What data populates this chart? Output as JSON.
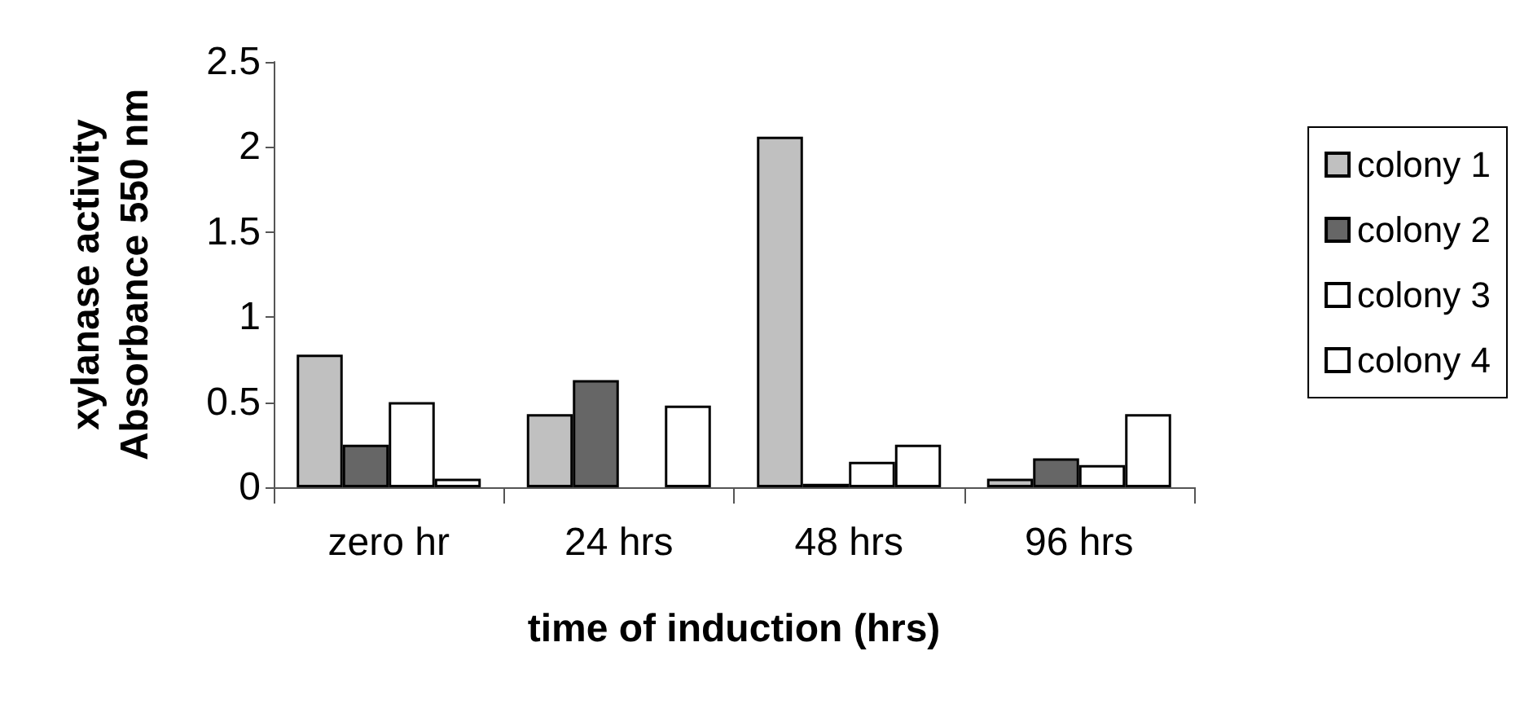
{
  "chart_data": {
    "type": "bar",
    "xlabel": "time of induction (hrs)",
    "ylabel": "xylanase activity\nAbsorbance 550 nm",
    "categories": [
      "zero hr",
      "24 hrs",
      "48 hrs",
      "96 hrs"
    ],
    "series": [
      {
        "name": "colony 1",
        "color": "#c0c0c0",
        "values": [
          0.78,
          0.43,
          2.06,
          0.05
        ]
      },
      {
        "name": "colony 2",
        "color": "#666666",
        "values": [
          0.25,
          0.63,
          0.02,
          0.17
        ]
      },
      {
        "name": "colony 3",
        "color": "#ffffff",
        "values": [
          0.5,
          null,
          0.15,
          0.13
        ]
      },
      {
        "name": "colony 4",
        "color": "#ffffff",
        "values": [
          0.05,
          0.48,
          0.25,
          0.43
        ]
      }
    ],
    "ylim": [
      0,
      2.5
    ],
    "yticks": [
      0,
      0.5,
      1,
      1.5,
      2,
      2.5
    ],
    "grid": false,
    "legend": "right"
  }
}
